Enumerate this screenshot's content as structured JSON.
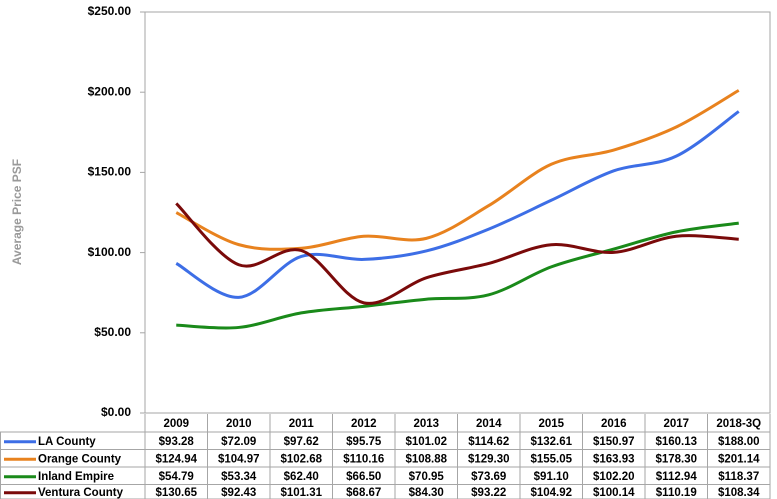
{
  "chart_data": {
    "type": "line",
    "y_label": "Average Price PSF",
    "categories": [
      "2009",
      "2010",
      "2011",
      "2012",
      "2013",
      "2014",
      "2015",
      "2016",
      "2017",
      "2018-3Q"
    ],
    "series": [
      {
        "name": "LA County",
        "color": "#3d6ee6",
        "values": [
          93.28,
          72.09,
          97.62,
          95.75,
          101.02,
          114.62,
          132.61,
          150.97,
          160.13,
          188.0
        ],
        "value_labels": [
          "$93.28",
          "$72.09",
          "$97.62",
          "$95.75",
          "$101.02",
          "$114.62",
          "$132.61",
          "$150.97",
          "$160.13",
          "$188.00"
        ]
      },
      {
        "name": "Orange County",
        "color": "#e8821e",
        "values": [
          124.94,
          104.97,
          102.68,
          110.16,
          108.88,
          129.3,
          155.05,
          163.93,
          178.3,
          201.14
        ],
        "value_labels": [
          "$124.94",
          "$104.97",
          "$102.68",
          "$110.16",
          "$108.88",
          "$129.30",
          "$155.05",
          "$163.93",
          "$178.30",
          "$201.14"
        ]
      },
      {
        "name": "Inland Empire",
        "color": "#1a8a1a",
        "values": [
          54.79,
          53.34,
          62.4,
          66.5,
          70.95,
          73.69,
          91.1,
          102.2,
          112.94,
          118.37
        ],
        "value_labels": [
          "$54.79",
          "$53.34",
          "$62.40",
          "$66.50",
          "$70.95",
          "$73.69",
          "$91.10",
          "$102.20",
          "$112.94",
          "$118.37"
        ]
      },
      {
        "name": "Ventura County",
        "color": "#7a0a0a",
        "values": [
          130.65,
          92.43,
          101.31,
          68.67,
          84.3,
          93.22,
          104.92,
          100.14,
          110.19,
          108.34
        ],
        "value_labels": [
          "$130.65",
          "$92.43",
          "$101.31",
          "$68.67",
          "$84.30",
          "$93.22",
          "$104.92",
          "$100.14",
          "$110.19",
          "$108.34"
        ]
      }
    ],
    "ylim": [
      0,
      250
    ],
    "yticks": [
      {
        "value": 0,
        "label": "$0.00"
      },
      {
        "value": 50,
        "label": "$50.00"
      },
      {
        "value": 100,
        "label": "$100.00"
      },
      {
        "value": 150,
        "label": "$150.00"
      },
      {
        "value": 200,
        "label": "$200.00"
      },
      {
        "value": 250,
        "label": "$250.00"
      }
    ],
    "grid": false
  }
}
